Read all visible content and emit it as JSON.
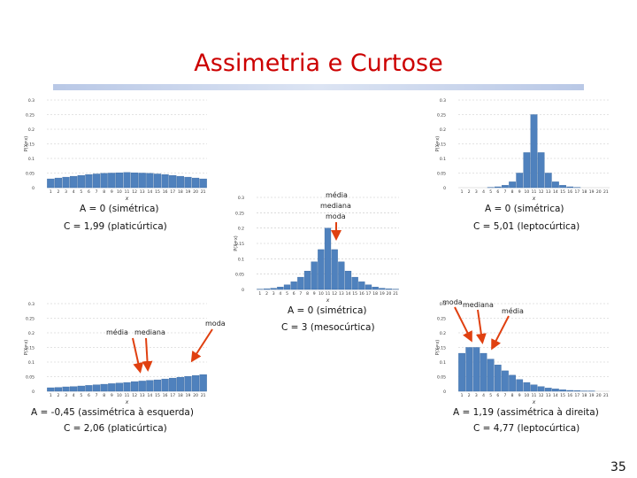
{
  "slide": {
    "title": "Assimetria e Curtose",
    "page_number": "35"
  },
  "colors": {
    "title": "#cc0000",
    "bar": "#4f81bd",
    "bar_edge": "#3a6aa3",
    "arrow": "#e04010"
  },
  "chart_data": [
    {
      "type": "bar",
      "id": "top-left",
      "categories": [
        "1",
        "2",
        "3",
        "4",
        "5",
        "6",
        "7",
        "8",
        "9",
        "10",
        "11",
        "12",
        "13",
        "14",
        "15",
        "16",
        "17",
        "18",
        "19",
        "20",
        "21"
      ],
      "values": [
        0.03,
        0.033,
        0.036,
        0.039,
        0.042,
        0.045,
        0.047,
        0.049,
        0.05,
        0.051,
        0.052,
        0.051,
        0.05,
        0.049,
        0.047,
        0.045,
        0.042,
        0.039,
        0.036,
        0.033,
        0.03
      ],
      "ylim": [
        0,
        0.3
      ],
      "yticks": [
        "0",
        "0.05",
        "0.1",
        "0.15",
        "0.2",
        "0.25",
        "0.3"
      ],
      "xlabel": "x",
      "ylabel": "P(X=x)",
      "stats": {
        "assimetria": "A = 0 (simétrica)",
        "curtose": "C = 1,99 (platicúrtica)"
      }
    },
    {
      "type": "bar",
      "id": "top-right",
      "categories": [
        "1",
        "2",
        "3",
        "4",
        "5",
        "6",
        "7",
        "8",
        "9",
        "10",
        "11",
        "12",
        "13",
        "14",
        "15",
        "16",
        "17",
        "18",
        "19",
        "20",
        "21"
      ],
      "values": [
        0.0,
        0.0,
        0.0,
        0.0,
        0.001,
        0.003,
        0.008,
        0.02,
        0.05,
        0.12,
        0.25,
        0.12,
        0.05,
        0.02,
        0.008,
        0.003,
        0.001,
        0.0,
        0.0,
        0.0,
        0.0
      ],
      "ylim": [
        0,
        0.3
      ],
      "yticks": [
        "0",
        "0.05",
        "0.1",
        "0.15",
        "0.2",
        "0.25",
        "0.3"
      ],
      "xlabel": "x",
      "ylabel": "P(X=x)",
      "stats": {
        "assimetria": "A = 0 (simétrica)",
        "curtose": "C = 5,01 (leptocúrtica)"
      }
    },
    {
      "type": "bar",
      "id": "center",
      "categories": [
        "1",
        "2",
        "3",
        "4",
        "5",
        "6",
        "7",
        "8",
        "9",
        "10",
        "11",
        "12",
        "13",
        "14",
        "15",
        "16",
        "17",
        "18",
        "19",
        "20",
        "21"
      ],
      "values": [
        0.001,
        0.002,
        0.004,
        0.008,
        0.015,
        0.025,
        0.04,
        0.06,
        0.09,
        0.13,
        0.2,
        0.13,
        0.09,
        0.06,
        0.04,
        0.025,
        0.015,
        0.008,
        0.004,
        0.002,
        0.001
      ],
      "ylim": [
        0,
        0.3
      ],
      "yticks": [
        "0",
        "0.05",
        "0.1",
        "0.15",
        "0.2",
        "0.25",
        "0.3"
      ],
      "xlabel": "x",
      "ylabel": "P(X=x)",
      "annotations": [
        "média",
        "mediana",
        "moda"
      ],
      "stats": {
        "assimetria": "A = 0 (simétrica)",
        "curtose": "C = 3 (mesocúrtica)"
      }
    },
    {
      "type": "bar",
      "id": "bottom-left",
      "categories": [
        "1",
        "2",
        "3",
        "4",
        "5",
        "6",
        "7",
        "8",
        "9",
        "10",
        "11",
        "12",
        "13",
        "14",
        "15",
        "16",
        "17",
        "18",
        "19",
        "20",
        "21"
      ],
      "values": [
        0.012,
        0.013,
        0.015,
        0.016,
        0.018,
        0.02,
        0.022,
        0.024,
        0.026,
        0.028,
        0.03,
        0.033,
        0.035,
        0.037,
        0.039,
        0.042,
        0.045,
        0.048,
        0.051,
        0.054,
        0.057
      ],
      "ylim": [
        0,
        0.3
      ],
      "yticks": [
        "0",
        "0.05",
        "0.1",
        "0.15",
        "0.2",
        "0.25",
        "0.3"
      ],
      "xlabel": "x",
      "ylabel": "P(X=x)",
      "annotations": [
        "média",
        "mediana",
        "moda"
      ],
      "stats": {
        "assimetria": "A = -0,45 (assimétrica à esquerda)",
        "curtose": "C = 2,06 (platicúrtica)"
      }
    },
    {
      "type": "bar",
      "id": "bottom-right",
      "categories": [
        "1",
        "2",
        "3",
        "4",
        "5",
        "6",
        "7",
        "8",
        "9",
        "10",
        "11",
        "12",
        "13",
        "14",
        "15",
        "16",
        "17",
        "18",
        "19",
        "20",
        "21"
      ],
      "values": [
        0.13,
        0.15,
        0.15,
        0.13,
        0.11,
        0.09,
        0.07,
        0.055,
        0.04,
        0.03,
        0.022,
        0.016,
        0.011,
        0.008,
        0.005,
        0.003,
        0.002,
        0.001,
        0.001,
        0.0,
        0.0
      ],
      "ylim": [
        0,
        0.3
      ],
      "yticks": [
        "0",
        "0.05",
        "0.1",
        "0.15",
        "0.2",
        "0.25",
        "0.3"
      ],
      "xlabel": "x",
      "ylabel": "P(X=x)",
      "annotations": [
        "moda",
        "mediana",
        "média"
      ],
      "stats": {
        "assimetria": "A = 1,19 (assimétrica à direita)",
        "curtose": "C = 4,77 (leptocúrtica)"
      }
    }
  ]
}
